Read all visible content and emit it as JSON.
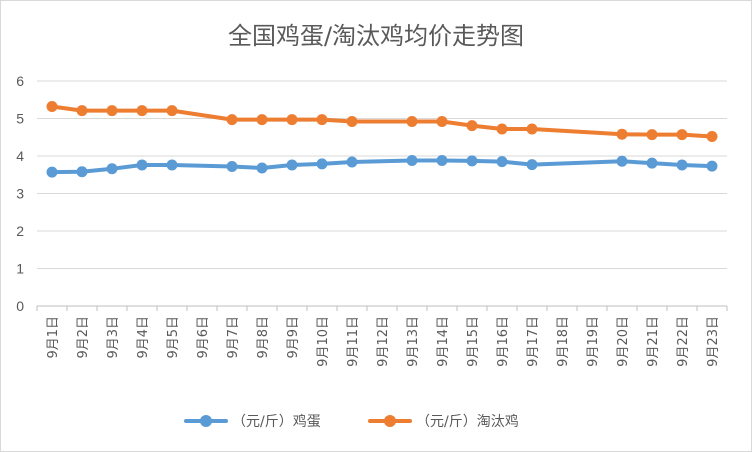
{
  "chart_data": {
    "type": "line",
    "title": "全国鸡蛋/淘汰鸡均价走势图",
    "categories": [
      "9月1日",
      "9月2日",
      "9月3日",
      "9月4日",
      "9月5日",
      "9月6日",
      "9月7日",
      "9月8日",
      "9月9日",
      "9月10日",
      "9月11日",
      "9月12日",
      "9月13日",
      "9月14日",
      "9月15日",
      "9月16日",
      "9月17日",
      "9月18日",
      "9月19日",
      "9月20日",
      "9月21日",
      "9月22日",
      "9月23日"
    ],
    "ylim": [
      0,
      6
    ],
    "yticks": [
      0,
      1,
      2,
      3,
      4,
      5,
      6
    ],
    "grid": true,
    "legend_position": "bottom",
    "series": [
      {
        "name": "（元/斤）鸡蛋",
        "color": "#5B9BD5",
        "values": [
          3.57,
          3.58,
          3.66,
          3.76,
          3.76,
          null,
          3.72,
          3.68,
          3.76,
          3.79,
          3.84,
          null,
          3.88,
          3.88,
          3.87,
          3.85,
          3.77,
          null,
          null,
          3.86,
          3.81,
          3.76,
          3.73
        ]
      },
      {
        "name": "（元/斤）淘汰鸡",
        "color": "#ED7D31",
        "values": [
          5.32,
          5.21,
          5.21,
          5.21,
          5.21,
          null,
          4.97,
          4.97,
          4.97,
          4.97,
          4.92,
          null,
          4.92,
          4.92,
          4.81,
          4.72,
          4.72,
          null,
          null,
          4.58,
          4.57,
          4.57,
          4.52
        ]
      }
    ]
  }
}
